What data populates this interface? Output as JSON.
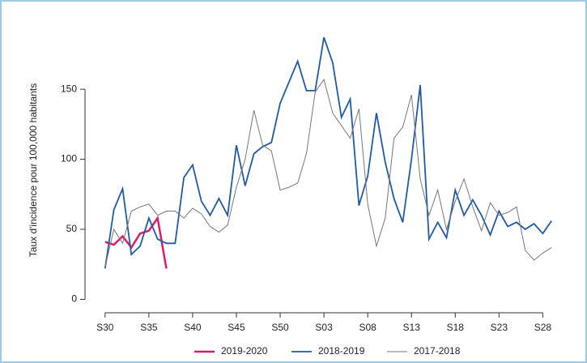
{
  "chart_data": {
    "type": "line",
    "y_label": "Taux d'incidence pour 100,000 habitants",
    "x": [
      0,
      1,
      2,
      3,
      4,
      5,
      6,
      7,
      8,
      9,
      10,
      11,
      12,
      13,
      14,
      15,
      16,
      17,
      18,
      19,
      20,
      21,
      22,
      23,
      24,
      25,
      26,
      27,
      28,
      29,
      30,
      31,
      32,
      33,
      34,
      35,
      36,
      37,
      38,
      39,
      40,
      41,
      42,
      43,
      44,
      45,
      46,
      47,
      48,
      49,
      50,
      51
    ],
    "series": [
      {
        "name": "2019-2020",
        "color": "#e0186c",
        "width": 2.5,
        "values": [
          41,
          39,
          45,
          37,
          47,
          49,
          58,
          22,
          null,
          null,
          null,
          null,
          null,
          null,
          null,
          null,
          null,
          null,
          null,
          null,
          null,
          null,
          null,
          null,
          null,
          null,
          null,
          null,
          null,
          null,
          null,
          null,
          null,
          null,
          null,
          null,
          null,
          null,
          null,
          null,
          null,
          null,
          null,
          null,
          null,
          null,
          null,
          null,
          null,
          null,
          null,
          null
        ]
      },
      {
        "name": "2018-2019",
        "color": "#1f5aa6",
        "width": 1.8,
        "values": [
          22,
          64,
          79,
          32,
          38,
          58,
          43,
          40,
          40,
          87,
          96,
          70,
          60,
          72,
          60,
          110,
          81,
          104,
          109,
          112,
          140,
          155,
          170,
          149,
          149,
          187,
          169,
          130,
          143,
          67,
          88,
          133,
          98,
          72,
          55,
          100,
          153,
          43,
          55,
          44,
          78,
          60,
          71,
          60,
          46,
          63,
          52,
          55,
          50,
          54,
          47,
          56
        ]
      },
      {
        "name": "2017-2018",
        "color": "#777777",
        "width": 1,
        "values": [
          23,
          50,
          40,
          63,
          66,
          68,
          60,
          63,
          63,
          58,
          65,
          61,
          52,
          48,
          53,
          80,
          100,
          135,
          110,
          106,
          78,
          80,
          83,
          104,
          148,
          157,
          133,
          124,
          115,
          136,
          68,
          38,
          58,
          115,
          123,
          146,
          86,
          60,
          78,
          50,
          70,
          86,
          66,
          49,
          69,
          60,
          62,
          66,
          35,
          28,
          33,
          37
        ]
      }
    ],
    "xlim": [
      -1,
      52
    ],
    "xticks": [
      {
        "value": 0,
        "label": "S30"
      },
      {
        "value": 5,
        "label": "S35"
      },
      {
        "value": 10,
        "label": "S40"
      },
      {
        "value": 15,
        "label": "S45"
      },
      {
        "value": 20,
        "label": "S50"
      },
      {
        "value": 25,
        "label": "S03"
      },
      {
        "value": 30,
        "label": "S08"
      },
      {
        "value": 35,
        "label": "S13"
      },
      {
        "value": 40,
        "label": "S18"
      },
      {
        "value": 45,
        "label": "S23"
      },
      {
        "value": 50,
        "label": "S28"
      }
    ],
    "ylim": [
      -9,
      190
    ],
    "yticks": [
      0,
      50,
      100,
      150
    ],
    "legend": "bottom"
  }
}
